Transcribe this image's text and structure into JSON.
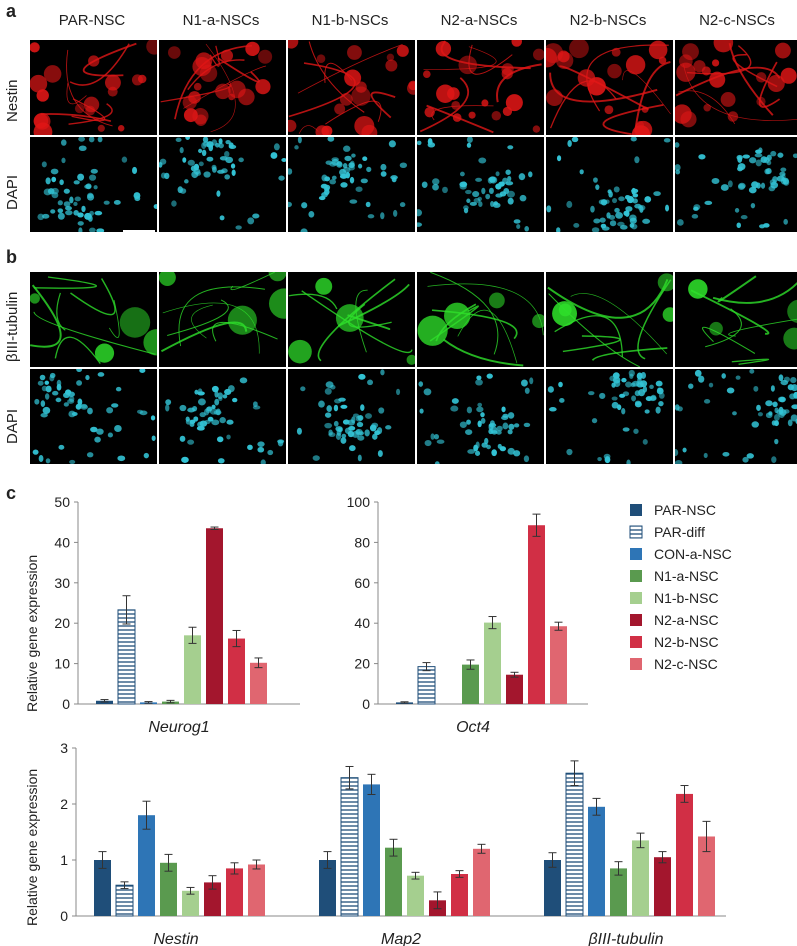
{
  "panels": {
    "a": "a",
    "b": "b",
    "c": "c"
  },
  "column_labels": [
    "PAR-NSC",
    "N1-a-NSCs",
    "N1-b-NSCs",
    "N2-a-NSCs",
    "N2-b-NSCs",
    "N2-c-NSCs"
  ],
  "row_labels": {
    "a_top": "Nestin",
    "a_bottom": "DAPI",
    "b_top": "βIII-tubulin",
    "b_bottom": "DAPI"
  },
  "colors": {
    "nestin": "#e01616",
    "dapi": "#33c4d6",
    "tubulin": "#2ee02a"
  },
  "legend": [
    {
      "name": "PAR-NSC",
      "color": "#1f4e79",
      "hatch": false
    },
    {
      "name": "PAR-diff",
      "color": "#1f4e79",
      "hatch": true
    },
    {
      "name": "CON-a-NSC",
      "color": "#2e75b6",
      "hatch": false
    },
    {
      "name": "N1-a-NSC",
      "color": "#5a9a4f",
      "hatch": false
    },
    {
      "name": "N1-b-NSC",
      "color": "#a5cf8f",
      "hatch": false
    },
    {
      "name": "N2-a-NSC",
      "color": "#a3162d",
      "hatch": false
    },
    {
      "name": "N2-b-NSC",
      "color": "#d12f45",
      "hatch": false
    },
    {
      "name": "N2-c-NSC",
      "color": "#e06670",
      "hatch": false
    }
  ],
  "ylabel": "Relative gene expression",
  "chart_data": [
    {
      "type": "bar",
      "gene": "Neurog1",
      "ylim": [
        0,
        50
      ],
      "yticks": [
        0,
        10,
        20,
        30,
        40,
        50
      ],
      "categories": [
        "PAR-NSC",
        "PAR-diff",
        "CON-a-NSC",
        "N1-a-NSC",
        "N1-b-NSC",
        "N2-a-NSC",
        "N2-b-NSC",
        "N2-c-NSC"
      ],
      "values": [
        0.8,
        23.3,
        0.4,
        0.6,
        17.0,
        43.5,
        16.2,
        10.2
      ],
      "errors": [
        0.3,
        3.5,
        0.2,
        0.3,
        2.0,
        0.3,
        2.0,
        1.2
      ]
    },
    {
      "type": "bar",
      "gene": "Oct4",
      "ylim": [
        0,
        100
      ],
      "yticks": [
        0,
        20,
        40,
        60,
        80,
        100
      ],
      "categories": [
        "PAR-NSC",
        "PAR-diff",
        "CON-a-NSC",
        "N1-a-NSC",
        "N1-b-NSC",
        "N2-a-NSC",
        "N2-b-NSC",
        "N2-c-NSC"
      ],
      "values": [
        0.8,
        18.5,
        null,
        19.5,
        40.3,
        14.5,
        88.5,
        38.5
      ],
      "errors": [
        0.3,
        2.0,
        null,
        2.3,
        3.0,
        1.2,
        5.5,
        2.0
      ]
    },
    {
      "type": "bar",
      "gene": "Nestin",
      "ylim": [
        0,
        3
      ],
      "yticks": [
        0,
        1,
        2,
        3
      ],
      "categories": [
        "PAR-NSC",
        "PAR-diff",
        "CON-a-NSC",
        "N1-a-NSC",
        "N1-b-NSC",
        "N2-a-NSC",
        "N2-b-NSC",
        "N2-c-NSC"
      ],
      "values": [
        1.0,
        0.55,
        1.8,
        0.95,
        0.45,
        0.6,
        0.85,
        0.92
      ],
      "errors": [
        0.15,
        0.06,
        0.25,
        0.15,
        0.06,
        0.12,
        0.1,
        0.08
      ]
    },
    {
      "type": "bar",
      "gene": "Map2",
      "ylim": [
        0,
        3
      ],
      "yticks": [
        0,
        1,
        2,
        3
      ],
      "categories": [
        "PAR-NSC",
        "PAR-diff",
        "CON-a-NSC",
        "N1-a-NSC",
        "N1-b-NSC",
        "N2-a-NSC",
        "N2-b-NSC",
        "N2-c-NSC"
      ],
      "values": [
        1.0,
        2.47,
        2.35,
        1.22,
        0.72,
        0.28,
        0.75,
        1.2
      ],
      "errors": [
        0.15,
        0.2,
        0.18,
        0.15,
        0.06,
        0.15,
        0.06,
        0.08
      ]
    },
    {
      "type": "bar",
      "gene": "βIII-tubulin",
      "ylim": [
        0,
        3
      ],
      "yticks": [
        0,
        1,
        2,
        3
      ],
      "categories": [
        "PAR-NSC",
        "PAR-diff",
        "CON-a-NSC",
        "N1-a-NSC",
        "N1-b-NSC",
        "N2-a-NSC",
        "N2-b-NSC",
        "N2-c-NSC"
      ],
      "values": [
        1.0,
        2.55,
        1.95,
        0.85,
        1.35,
        1.05,
        2.18,
        1.42
      ],
      "errors": [
        0.13,
        0.22,
        0.15,
        0.12,
        0.13,
        0.1,
        0.15,
        0.27
      ]
    }
  ]
}
